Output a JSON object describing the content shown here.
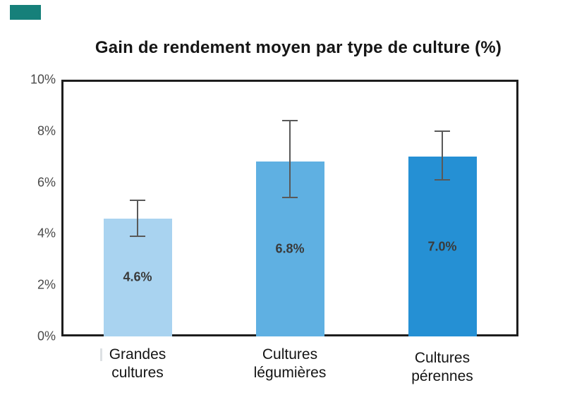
{
  "decor": {
    "corner_marker_color": "#16807A",
    "faint_tick_color": "#dde1e4"
  },
  "chart_data": {
    "type": "bar",
    "title": "Gain de rendement moyen par type de culture (%)",
    "categories": [
      "Grandes cultures",
      "Cultures légumières",
      "Cultures pérennes"
    ],
    "values": [
      4.6,
      6.8,
      7.0
    ],
    "data_labels": [
      "4.6%",
      "6.8%",
      "7.0%"
    ],
    "error_bars": [
      {
        "low": 3.9,
        "high": 5.3
      },
      {
        "low": 5.4,
        "high": 8.4
      },
      {
        "low": 6.1,
        "high": 8.0
      }
    ],
    "bar_colors": [
      "#A9D3F0",
      "#5FB0E2",
      "#2590D4"
    ],
    "error_bar_color": "#595959",
    "value_label_color": "#3a3a3a",
    "xlabel": "",
    "ylabel": "",
    "ylim": [
      0,
      10
    ],
    "yticks": [
      {
        "label": "0%",
        "value": 0
      },
      {
        "label": "2%",
        "value": 2
      },
      {
        "label": "4%",
        "value": 4
      },
      {
        "label": "6%",
        "value": 6
      },
      {
        "label": "8%",
        "value": 8
      },
      {
        "label": "10%",
        "value": 10
      }
    ],
    "grid": false,
    "legend": false,
    "category_label_dy": [
      0,
      0,
      5
    ]
  }
}
